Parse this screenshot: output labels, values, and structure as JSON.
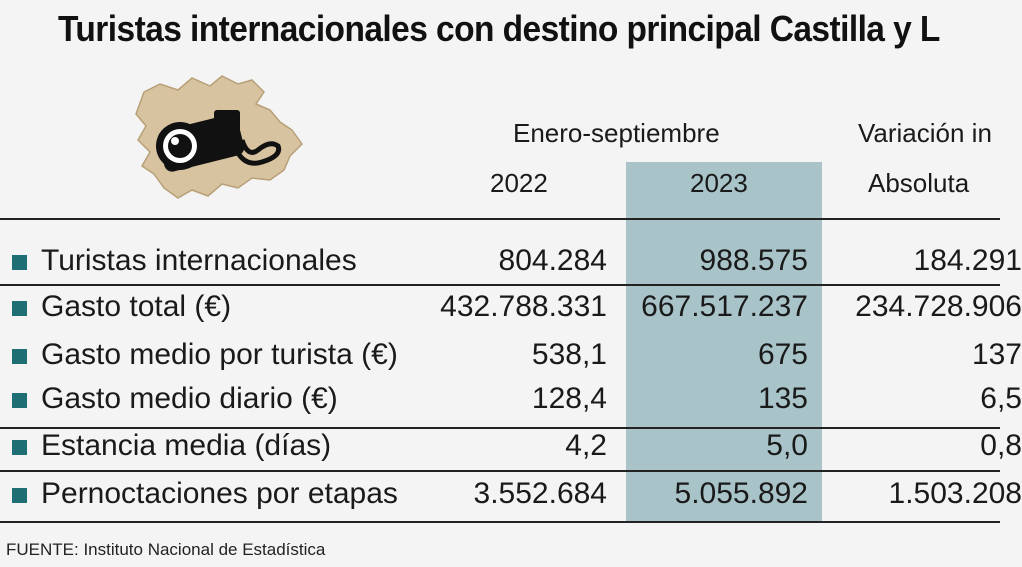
{
  "title": "Turistas internacionales con destino principal Castilla y L",
  "table": {
    "period_header": "Enero-septiembre",
    "variation_header": "Variación in",
    "col_2022": "2022",
    "col_2023": "2023",
    "col_abs": "Absoluta",
    "highlight_color": "#a9c4c9",
    "bullet_color": "#1f6e73",
    "rows": [
      {
        "label": "Turistas internacionales",
        "v2022": "804.284",
        "v2023": "988.575",
        "abs": "184.291"
      },
      {
        "label": "Gasto total (€)",
        "v2022": "432.788.331",
        "v2023": "667.517.237",
        "abs": "234.728.906"
      },
      {
        "label": "Gasto medio por turista (€)",
        "v2022": "538,1",
        "v2023": "675",
        "abs": "137"
      },
      {
        "label": "Gasto medio diario (€)",
        "v2022": "128,4",
        "v2023": "135",
        "abs": "6,5"
      },
      {
        "label": "Estancia media (días)",
        "v2022": "4,2",
        "v2023": "5,0",
        "abs": "0,8"
      },
      {
        "label": "Pernoctaciones por etapas",
        "v2022": "3.552.684",
        "v2023": "5.055.892",
        "abs": "1.503.208"
      }
    ]
  },
  "illustration": {
    "icon": "camera-on-map-icon",
    "map_color": "#d8c3a0"
  },
  "source": "FUENTE: Instituto Nacional de Estadística"
}
